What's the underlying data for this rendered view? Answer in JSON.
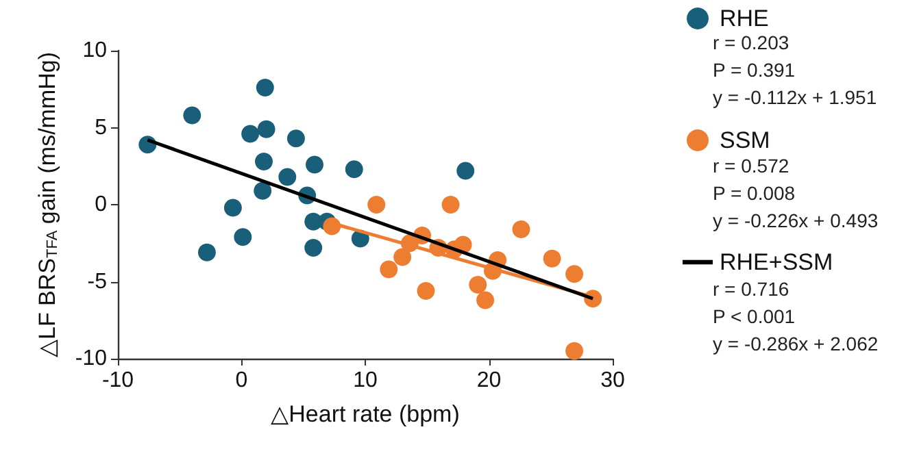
{
  "chart_data": {
    "type": "scatter",
    "xlabel": "△Heart rate (bpm)",
    "ylabel": "△LF BRS$_{TFA}$ gain (ms/mmHg)",
    "xlim": [
      -10,
      30
    ],
    "xticks": [
      -10,
      0,
      10,
      20,
      30
    ],
    "ylim": [
      -10,
      10
    ],
    "yticks": [
      -10,
      -5,
      0,
      5,
      10
    ],
    "grid": false,
    "legend": "right",
    "marker": "circle",
    "series": [
      {
        "name": "RHE",
        "color": "#1a5f7a",
        "x": [
          -7.6,
          -4.0,
          1.9,
          2.0,
          0.7,
          4.4,
          1.8,
          3.7,
          5.9,
          9.1,
          1.7,
          5.3,
          -0.7,
          5.8,
          6.9,
          0.1,
          5.8,
          -2.8,
          18.1,
          9.6
        ],
        "values": [
          3.9,
          5.8,
          7.6,
          4.9,
          4.6,
          4.3,
          2.8,
          1.8,
          2.6,
          2.3,
          0.9,
          0.6,
          -0.2,
          -1.1,
          -1.1,
          -2.1,
          -2.8,
          -3.1,
          2.2,
          -2.2
        ]
      },
      {
        "name": "SSM",
        "color": "#ed7d31",
        "x": [
          7.3,
          10.9,
          16.9,
          22.6,
          14.6,
          13.6,
          15.9,
          17.9,
          17.2,
          13.0,
          20.7,
          11.9,
          20.3,
          25.1,
          26.9,
          19.1,
          14.9,
          19.7,
          28.4,
          26.9
        ],
        "values": [
          -1.4,
          0.0,
          0.0,
          -1.6,
          -2.0,
          -2.5,
          -2.8,
          -2.6,
          -2.9,
          -3.4,
          -3.6,
          -4.2,
          -4.3,
          -3.5,
          -4.5,
          -5.2,
          -5.6,
          -6.2,
          -6.1,
          -9.5
        ]
      },
      {
        "type": "line",
        "color": "#ed7d31",
        "marker": "none",
        "x": [
          7.3,
          28.4
        ],
        "values": [
          -1.2,
          -6.0
        ]
      },
      {
        "type": "line",
        "name": "RHE+SSM",
        "color": "#000000",
        "marker": "none",
        "x": [
          -7.6,
          28.4
        ],
        "values": [
          4.2,
          -6.1
        ]
      }
    ],
    "annotations": [
      "r = 0.203",
      "P = 0.391",
      "y = -0.112x + 1.951",
      "r = 0.572",
      "P = 0.008",
      "y = -0.226x + 0.493",
      "r = 0.716",
      "P < 0.001",
      "y = -0.286x + 2.062"
    ]
  }
}
